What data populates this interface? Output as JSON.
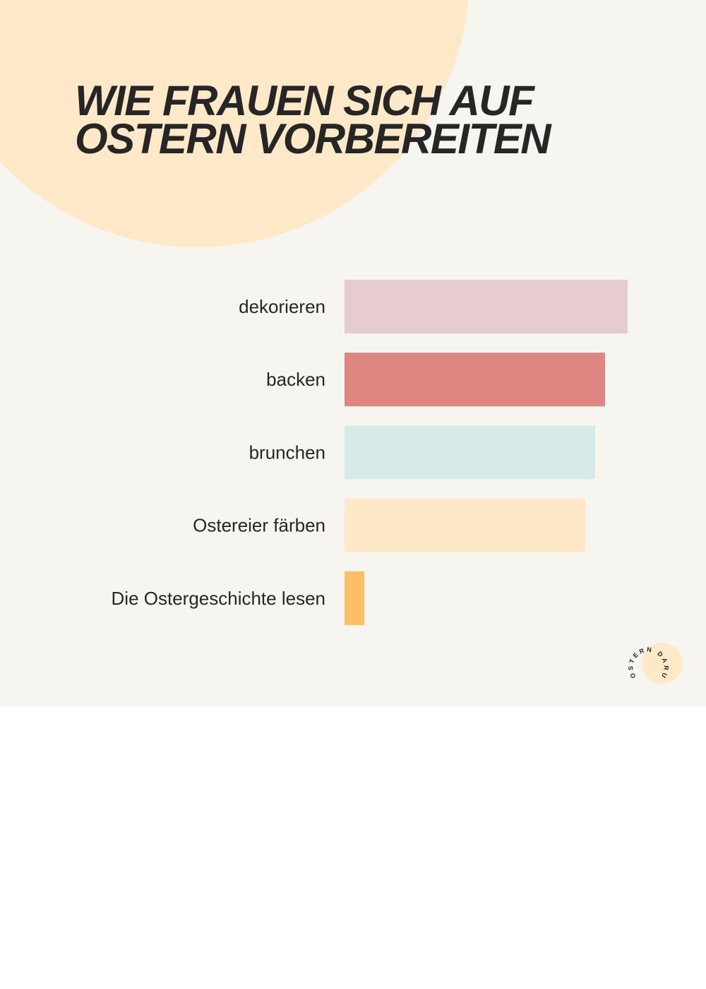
{
  "title": {
    "line1": "WIE FRAUEN SICH AUF",
    "line2": "OSTERN VORBEREITEN"
  },
  "chart_data": {
    "type": "bar",
    "orientation": "horizontal",
    "title": "WIE FRAUEN SICH AUF OSTERN VORBEREITEN",
    "categories": [
      "dekorieren",
      "backen",
      "brunchen",
      "Ostereier färben",
      "Die Ostergeschichte lesen"
    ],
    "values": [
      100,
      92,
      88.5,
      85,
      7
    ],
    "colors": [
      "#e6cccf",
      "#df8683",
      "#d6eae8",
      "#ffe8c8",
      "#fcbf67"
    ],
    "value_scale_max": 100,
    "axes_visible": false,
    "grid": false,
    "legend": "none"
  },
  "logo": {
    "text": "OSTERN DARUM",
    "circle_color": "#ffe9c9"
  },
  "colors": {
    "background": "#f7f5f0",
    "accent_circle": "#ffe9c9",
    "text": "#262626"
  }
}
